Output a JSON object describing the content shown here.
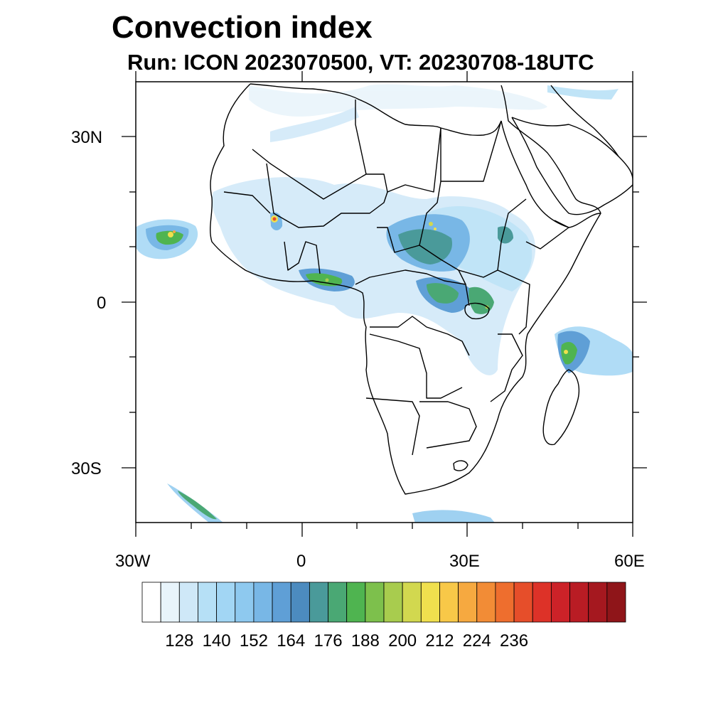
{
  "title": "Convection index",
  "subtitle": "Run: ICON 2023070500,  VT: 20230708-18UTC",
  "map": {
    "lon_range": [
      -30,
      60
    ],
    "lat_range": [
      -40,
      40
    ],
    "lat_labels": [
      "30N",
      "0",
      "30S"
    ],
    "lon_labels": [
      "30W",
      "0",
      "30E",
      "60E"
    ],
    "coastline_color": "#000000"
  },
  "colorbar": {
    "colors": [
      "#ffffff",
      "#e8f4fb",
      "#cfe8f8",
      "#b6e0f6",
      "#a2d6f4",
      "#8ec9ef",
      "#78b7e6",
      "#5f9fd6",
      "#4c8bbf",
      "#4a9a9a",
      "#4aa874",
      "#4fb450",
      "#7dc04c",
      "#a8cc4e",
      "#d2d84f",
      "#f0e04e",
      "#f8c848",
      "#f6a940",
      "#f28c36",
      "#ee6e2e",
      "#e64e2a",
      "#dd3228",
      "#cc2228",
      "#b91c24",
      "#a5181f",
      "#8f1519"
    ],
    "tick_labels": [
      "128",
      "140",
      "152",
      "164",
      "176",
      "188",
      "200",
      "212",
      "224",
      "236"
    ]
  }
}
